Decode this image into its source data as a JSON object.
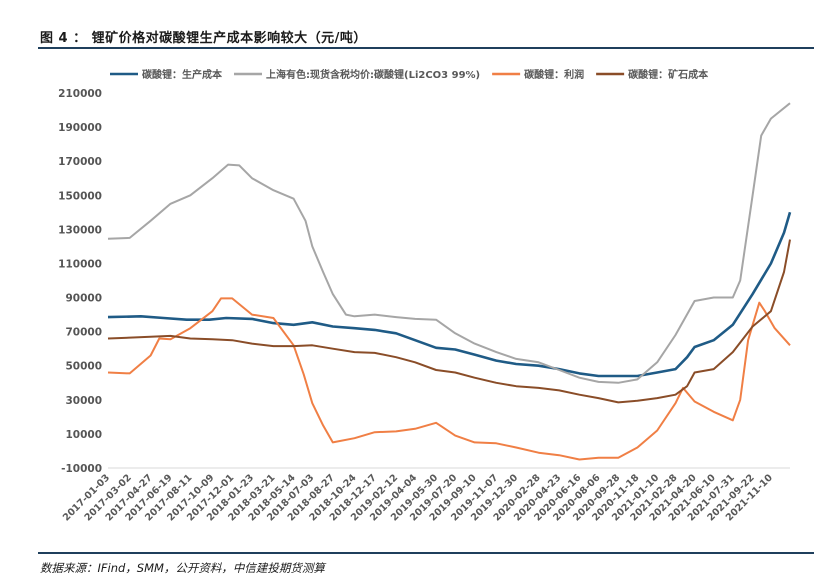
{
  "figure": {
    "title": "图 4 ： 锂矿价格对碳酸锂生产成本影响较大（元/吨）",
    "source": "数据来源：IFind，SMM，公开资料，中信建投期货测算"
  },
  "colors": {
    "production_cost": "#1f5b86",
    "market_price": "#a6a6a6",
    "profit": "#f07f45",
    "ore_cost": "#8a4d28",
    "rule": "#1f3f5c"
  },
  "chart_data": {
    "type": "line",
    "title": "",
    "xlabel": "",
    "ylabel": "",
    "ylim": [
      -10000,
      210000
    ],
    "yticks": [
      -10000,
      10000,
      30000,
      50000,
      70000,
      90000,
      110000,
      130000,
      150000,
      170000,
      190000,
      210000
    ],
    "ytick_labels": [
      "-10000",
      "10000",
      "30000",
      "50000",
      "70000",
      "90000",
      "110000",
      "130000",
      "150000",
      "170000",
      "190000",
      "210000"
    ],
    "xlim": [
      "2017-01-03",
      "2021-12-31"
    ],
    "xticks": [
      "2017-01-03",
      "2017-03-02",
      "2017-04-27",
      "2017-06-19",
      "2017-08-11",
      "2017-10-09",
      "2017-12-01",
      "2018-01-23",
      "2018-03-21",
      "2018-05-14",
      "2018-07-03",
      "2018-08-27",
      "2018-10-24",
      "2018-12-17",
      "2019-02-12",
      "2019-04-04",
      "2019-05-30",
      "2019-07-20",
      "2019-09-10",
      "2019-11-07",
      "2019-12-30",
      "2020-02-28",
      "2020-04-23",
      "2020-06-16",
      "2020-08-06",
      "2020-09-28",
      "2020-11-18",
      "2021-01-10",
      "2021-02-28",
      "2021-04-20",
      "2021-06-10",
      "2021-07-31",
      "2021-09-22",
      "2021-11-10"
    ],
    "legend_position": "top",
    "grid": false,
    "series": [
      {
        "name": "碳酸锂：生产成本",
        "color_key": "production_cost",
        "points": [
          [
            "2017-01-03",
            78500
          ],
          [
            "2017-04-01",
            79000
          ],
          [
            "2017-06-01",
            78000
          ],
          [
            "2017-08-01",
            77000
          ],
          [
            "2017-10-01",
            77000
          ],
          [
            "2017-11-15",
            78000
          ],
          [
            "2018-01-23",
            77500
          ],
          [
            "2018-03-21",
            75000
          ],
          [
            "2018-05-14",
            74000
          ],
          [
            "2018-07-03",
            75500
          ],
          [
            "2018-08-27",
            73000
          ],
          [
            "2018-10-24",
            72000
          ],
          [
            "2018-12-17",
            71000
          ],
          [
            "2019-02-12",
            69000
          ],
          [
            "2019-04-04",
            65000
          ],
          [
            "2019-05-30",
            60500
          ],
          [
            "2019-07-20",
            59500
          ],
          [
            "2019-09-10",
            56500
          ],
          [
            "2019-11-07",
            53000
          ],
          [
            "2019-12-30",
            51000
          ],
          [
            "2020-02-28",
            50000
          ],
          [
            "2020-04-23",
            48000
          ],
          [
            "2020-06-16",
            45500
          ],
          [
            "2020-08-06",
            44000
          ],
          [
            "2020-09-28",
            44000
          ],
          [
            "2020-11-18",
            44000
          ],
          [
            "2021-01-10",
            46000
          ],
          [
            "2021-02-28",
            48000
          ],
          [
            "2021-03-31",
            55000
          ],
          [
            "2021-04-20",
            61000
          ],
          [
            "2021-06-10",
            65000
          ],
          [
            "2021-07-31",
            74000
          ],
          [
            "2021-09-22",
            92000
          ],
          [
            "2021-11-10",
            110000
          ],
          [
            "2021-12-15",
            128000
          ],
          [
            "2021-12-31",
            140000
          ]
        ]
      },
      {
        "name": "上海有色:现货含税均价:碳酸锂(Li2CO3 99%)",
        "color_key": "market_price",
        "points": [
          [
            "2017-01-03",
            124500
          ],
          [
            "2017-03-02",
            125000
          ],
          [
            "2017-04-27",
            135000
          ],
          [
            "2017-06-19",
            145000
          ],
          [
            "2017-08-11",
            150000
          ],
          [
            "2017-10-09",
            160000
          ],
          [
            "2017-11-20",
            168000
          ],
          [
            "2017-12-20",
            167500
          ],
          [
            "2018-01-23",
            160000
          ],
          [
            "2018-03-21",
            153000
          ],
          [
            "2018-05-14",
            148000
          ],
          [
            "2018-06-15",
            135000
          ],
          [
            "2018-07-03",
            120000
          ],
          [
            "2018-08-01",
            105000
          ],
          [
            "2018-08-27",
            92000
          ],
          [
            "2018-10-01",
            80000
          ],
          [
            "2018-10-24",
            79000
          ],
          [
            "2018-12-17",
            80000
          ],
          [
            "2019-02-12",
            78500
          ],
          [
            "2019-04-04",
            77500
          ],
          [
            "2019-05-30",
            77000
          ],
          [
            "2019-07-20",
            69000
          ],
          [
            "2019-09-10",
            63000
          ],
          [
            "2019-11-07",
            58000
          ],
          [
            "2019-12-30",
            54000
          ],
          [
            "2020-02-28",
            52000
          ],
          [
            "2020-04-23",
            47500
          ],
          [
            "2020-06-16",
            43000
          ],
          [
            "2020-08-06",
            40500
          ],
          [
            "2020-09-28",
            40000
          ],
          [
            "2020-11-18",
            42000
          ],
          [
            "2021-01-10",
            52000
          ],
          [
            "2021-02-28",
            68000
          ],
          [
            "2021-04-20",
            88000
          ],
          [
            "2021-06-10",
            90000
          ],
          [
            "2021-07-31",
            90000
          ],
          [
            "2021-08-20",
            100000
          ],
          [
            "2021-09-22",
            150000
          ],
          [
            "2021-10-15",
            185000
          ],
          [
            "2021-11-10",
            195000
          ],
          [
            "2021-12-31",
            204000
          ]
        ]
      },
      {
        "name": "碳酸锂：利润",
        "color_key": "profit",
        "points": [
          [
            "2017-01-03",
            46000
          ],
          [
            "2017-03-02",
            45500
          ],
          [
            "2017-04-27",
            56000
          ],
          [
            "2017-05-20",
            66000
          ],
          [
            "2017-06-19",
            65500
          ],
          [
            "2017-08-11",
            72000
          ],
          [
            "2017-10-09",
            82000
          ],
          [
            "2017-11-01",
            89500
          ],
          [
            "2017-12-01",
            89500
          ],
          [
            "2018-01-23",
            80000
          ],
          [
            "2018-03-21",
            78000
          ],
          [
            "2018-05-14",
            62000
          ],
          [
            "2018-06-10",
            45000
          ],
          [
            "2018-07-03",
            28000
          ],
          [
            "2018-08-01",
            15000
          ],
          [
            "2018-08-27",
            5000
          ],
          [
            "2018-10-24",
            7500
          ],
          [
            "2018-12-17",
            11000
          ],
          [
            "2019-02-12",
            11500
          ],
          [
            "2019-04-04",
            13000
          ],
          [
            "2019-05-30",
            16500
          ],
          [
            "2019-07-20",
            9000
          ],
          [
            "2019-09-10",
            5000
          ],
          [
            "2019-11-07",
            4500
          ],
          [
            "2019-12-30",
            2000
          ],
          [
            "2020-02-28",
            -1000
          ],
          [
            "2020-04-23",
            -2500
          ],
          [
            "2020-06-16",
            -5000
          ],
          [
            "2020-08-06",
            -4000
          ],
          [
            "2020-09-28",
            -4000
          ],
          [
            "2020-11-18",
            2000
          ],
          [
            "2021-01-10",
            12000
          ],
          [
            "2021-02-28",
            28000
          ],
          [
            "2021-03-20",
            37000
          ],
          [
            "2021-04-20",
            29000
          ],
          [
            "2021-06-10",
            23000
          ],
          [
            "2021-07-31",
            18000
          ],
          [
            "2021-08-20",
            30000
          ],
          [
            "2021-09-10",
            65000
          ],
          [
            "2021-10-10",
            87000
          ],
          [
            "2021-10-25",
            82000
          ],
          [
            "2021-11-20",
            72000
          ],
          [
            "2021-12-31",
            62000
          ]
        ]
      },
      {
        "name": "碳酸锂：矿石成本",
        "color_key": "ore_cost",
        "points": [
          [
            "2017-01-03",
            66000
          ],
          [
            "2017-04-27",
            67000
          ],
          [
            "2017-06-19",
            67500
          ],
          [
            "2017-08-11",
            66000
          ],
          [
            "2017-10-09",
            65500
          ],
          [
            "2017-12-01",
            65000
          ],
          [
            "2018-01-23",
            63000
          ],
          [
            "2018-03-21",
            61500
          ],
          [
            "2018-05-14",
            61500
          ],
          [
            "2018-07-03",
            62000
          ],
          [
            "2018-08-27",
            60000
          ],
          [
            "2018-10-24",
            58000
          ],
          [
            "2018-12-17",
            57500
          ],
          [
            "2019-02-12",
            55000
          ],
          [
            "2019-04-04",
            52000
          ],
          [
            "2019-05-30",
            47500
          ],
          [
            "2019-07-20",
            46000
          ],
          [
            "2019-09-10",
            43000
          ],
          [
            "2019-11-07",
            40000
          ],
          [
            "2019-12-30",
            38000
          ],
          [
            "2020-02-28",
            37000
          ],
          [
            "2020-04-23",
            35500
          ],
          [
            "2020-06-16",
            33000
          ],
          [
            "2020-08-06",
            31000
          ],
          [
            "2020-09-28",
            28500
          ],
          [
            "2020-11-18",
            29500
          ],
          [
            "2021-01-10",
            31000
          ],
          [
            "2021-02-28",
            33000
          ],
          [
            "2021-03-31",
            38000
          ],
          [
            "2021-04-20",
            46000
          ],
          [
            "2021-06-10",
            48000
          ],
          [
            "2021-07-31",
            58000
          ],
          [
            "2021-09-22",
            73000
          ],
          [
            "2021-11-10",
            82000
          ],
          [
            "2021-12-15",
            105000
          ],
          [
            "2021-12-31",
            124000
          ]
        ]
      }
    ]
  }
}
